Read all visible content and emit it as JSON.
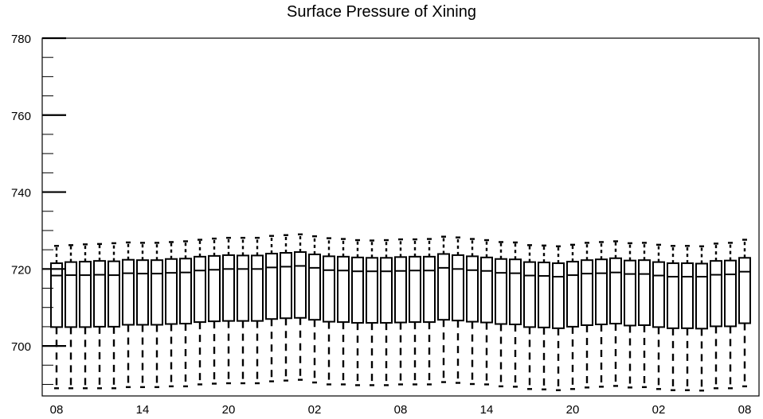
{
  "chart_data": {
    "type": "boxplot",
    "title": "Surface Pressure of Xining",
    "xlabel": "",
    "ylabel": "",
    "ylim": [
      687,
      780
    ],
    "y_ticks": [
      700,
      720,
      740,
      760,
      780
    ],
    "x_tick_labels": [
      "08",
      "14",
      "20",
      "02",
      "08",
      "14",
      "20",
      "02",
      "08"
    ],
    "x_tick_positions": [
      0,
      6,
      12,
      18,
      24,
      30,
      36,
      42,
      48
    ],
    "x_range": [
      -1,
      49
    ],
    "grid": false,
    "boxes": [
      {
        "x": 0,
        "whisker_low": 689.0,
        "q1": 704.9,
        "median": 718.3,
        "q3": 721.5,
        "whisker_high": 726.0
      },
      {
        "x": 1,
        "whisker_low": 689.0,
        "q1": 704.9,
        "median": 718.4,
        "q3": 721.8,
        "whisker_high": 726.2
      },
      {
        "x": 2,
        "whisker_low": 689.0,
        "q1": 704.9,
        "median": 718.4,
        "q3": 721.9,
        "whisker_high": 726.4
      },
      {
        "x": 3,
        "whisker_low": 689.0,
        "q1": 705.0,
        "median": 718.5,
        "q3": 722.1,
        "whisker_high": 726.5
      },
      {
        "x": 4,
        "whisker_low": 689.0,
        "q1": 705.0,
        "median": 718.4,
        "q3": 722.0,
        "whisker_high": 726.7
      },
      {
        "x": 5,
        "whisker_low": 689.3,
        "q1": 705.5,
        "median": 718.9,
        "q3": 722.4,
        "whisker_high": 726.9
      },
      {
        "x": 6,
        "whisker_low": 689.3,
        "q1": 705.5,
        "median": 718.8,
        "q3": 722.3,
        "whisker_high": 726.8
      },
      {
        "x": 7,
        "whisker_low": 689.3,
        "q1": 705.5,
        "median": 718.8,
        "q3": 722.3,
        "whisker_high": 726.8
      },
      {
        "x": 8,
        "whisker_low": 689.5,
        "q1": 705.7,
        "median": 719.0,
        "q3": 722.6,
        "whisker_high": 727.0
      },
      {
        "x": 9,
        "whisker_low": 689.5,
        "q1": 705.8,
        "median": 719.1,
        "q3": 722.7,
        "whisker_high": 727.2
      },
      {
        "x": 10,
        "whisker_low": 690.0,
        "q1": 706.2,
        "median": 719.6,
        "q3": 723.2,
        "whisker_high": 727.6
      },
      {
        "x": 11,
        "whisker_low": 690.2,
        "q1": 706.4,
        "median": 719.8,
        "q3": 723.4,
        "whisker_high": 727.9
      },
      {
        "x": 12,
        "whisker_low": 690.3,
        "q1": 706.5,
        "median": 720.0,
        "q3": 723.6,
        "whisker_high": 728.1
      },
      {
        "x": 13,
        "whisker_low": 690.3,
        "q1": 706.5,
        "median": 720.0,
        "q3": 723.5,
        "whisker_high": 728.1
      },
      {
        "x": 14,
        "whisker_low": 690.3,
        "q1": 706.5,
        "median": 720.0,
        "q3": 723.5,
        "whisker_high": 728.1
      },
      {
        "x": 15,
        "whisker_low": 690.8,
        "q1": 707.0,
        "median": 720.4,
        "q3": 724.0,
        "whisker_high": 728.6
      },
      {
        "x": 16,
        "whisker_low": 691.0,
        "q1": 707.2,
        "median": 720.6,
        "q3": 724.2,
        "whisker_high": 728.8
      },
      {
        "x": 17,
        "whisker_low": 691.2,
        "q1": 707.3,
        "median": 720.8,
        "q3": 724.4,
        "whisker_high": 729.0
      },
      {
        "x": 18,
        "whisker_low": 690.5,
        "q1": 706.8,
        "median": 720.3,
        "q3": 723.8,
        "whisker_high": 728.5
      },
      {
        "x": 19,
        "whisker_low": 690.0,
        "q1": 706.3,
        "median": 719.7,
        "q3": 723.3,
        "whisker_high": 728.0
      },
      {
        "x": 20,
        "whisker_low": 690.0,
        "q1": 706.2,
        "median": 719.6,
        "q3": 723.2,
        "whisker_high": 727.8
      },
      {
        "x": 21,
        "whisker_low": 689.8,
        "q1": 706.0,
        "median": 719.4,
        "q3": 723.0,
        "whisker_high": 727.5
      },
      {
        "x": 22,
        "whisker_low": 689.8,
        "q1": 706.0,
        "median": 719.4,
        "q3": 722.9,
        "whisker_high": 727.4
      },
      {
        "x": 23,
        "whisker_low": 689.8,
        "q1": 706.0,
        "median": 719.4,
        "q3": 722.9,
        "whisker_high": 727.5
      },
      {
        "x": 24,
        "whisker_low": 690.0,
        "q1": 706.1,
        "median": 719.5,
        "q3": 723.1,
        "whisker_high": 727.7
      },
      {
        "x": 25,
        "whisker_low": 690.0,
        "q1": 706.2,
        "median": 719.6,
        "q3": 723.2,
        "whisker_high": 727.7
      },
      {
        "x": 26,
        "whisker_low": 690.0,
        "q1": 706.2,
        "median": 719.6,
        "q3": 723.2,
        "whisker_high": 727.8
      },
      {
        "x": 27,
        "whisker_low": 690.6,
        "q1": 706.8,
        "median": 720.3,
        "q3": 723.9,
        "whisker_high": 728.4
      },
      {
        "x": 28,
        "whisker_low": 690.4,
        "q1": 706.6,
        "median": 720.0,
        "q3": 723.6,
        "whisker_high": 728.2
      },
      {
        "x": 29,
        "whisker_low": 690.1,
        "q1": 706.3,
        "median": 719.7,
        "q3": 723.3,
        "whisker_high": 727.8
      },
      {
        "x": 30,
        "whisker_low": 690.0,
        "q1": 706.1,
        "median": 719.5,
        "q3": 723.0,
        "whisker_high": 727.5
      },
      {
        "x": 31,
        "whisker_low": 689.5,
        "q1": 705.7,
        "median": 719.0,
        "q3": 722.6,
        "whisker_high": 727.0
      },
      {
        "x": 32,
        "whisker_low": 689.4,
        "q1": 705.6,
        "median": 718.9,
        "q3": 722.5,
        "whisker_high": 726.9
      },
      {
        "x": 33,
        "whisker_low": 688.8,
        "q1": 704.9,
        "median": 718.3,
        "q3": 721.8,
        "whisker_high": 726.2
      },
      {
        "x": 34,
        "whisker_low": 688.7,
        "q1": 704.8,
        "median": 718.2,
        "q3": 721.7,
        "whisker_high": 726.1
      },
      {
        "x": 35,
        "whisker_low": 688.5,
        "q1": 704.6,
        "median": 718.0,
        "q3": 721.5,
        "whisker_high": 725.9
      },
      {
        "x": 36,
        "whisker_low": 688.8,
        "q1": 705.0,
        "median": 718.4,
        "q3": 721.9,
        "whisker_high": 726.3
      },
      {
        "x": 37,
        "whisker_low": 689.2,
        "q1": 705.4,
        "median": 718.8,
        "q3": 722.3,
        "whisker_high": 726.8
      },
      {
        "x": 38,
        "whisker_low": 689.4,
        "q1": 705.6,
        "median": 718.9,
        "q3": 722.5,
        "whisker_high": 727.0
      },
      {
        "x": 39,
        "whisker_low": 689.6,
        "q1": 705.8,
        "median": 719.1,
        "q3": 722.8,
        "whisker_high": 727.2
      },
      {
        "x": 40,
        "whisker_low": 689.2,
        "q1": 705.3,
        "median": 718.7,
        "q3": 722.2,
        "whisker_high": 726.7
      },
      {
        "x": 41,
        "whisker_low": 689.3,
        "q1": 705.4,
        "median": 718.7,
        "q3": 722.3,
        "whisker_high": 726.8
      },
      {
        "x": 42,
        "whisker_low": 688.8,
        "q1": 704.9,
        "median": 718.3,
        "q3": 721.8,
        "whisker_high": 726.3
      },
      {
        "x": 43,
        "whisker_low": 688.5,
        "q1": 704.6,
        "median": 718.0,
        "q3": 721.5,
        "whisker_high": 726.0
      },
      {
        "x": 44,
        "whisker_low": 688.5,
        "q1": 704.6,
        "median": 718.0,
        "q3": 721.5,
        "whisker_high": 726.0
      },
      {
        "x": 45,
        "whisker_low": 688.4,
        "q1": 704.5,
        "median": 718.0,
        "q3": 721.4,
        "whisker_high": 725.9
      },
      {
        "x": 46,
        "whisker_low": 689.0,
        "q1": 705.1,
        "median": 718.5,
        "q3": 722.1,
        "whisker_high": 726.6
      },
      {
        "x": 47,
        "whisker_low": 689.0,
        "q1": 705.1,
        "median": 718.6,
        "q3": 722.2,
        "whisker_high": 726.8
      },
      {
        "x": 48,
        "whisker_low": 689.5,
        "q1": 705.9,
        "median": 719.3,
        "q3": 722.9,
        "whisker_high": 727.6
      }
    ]
  }
}
